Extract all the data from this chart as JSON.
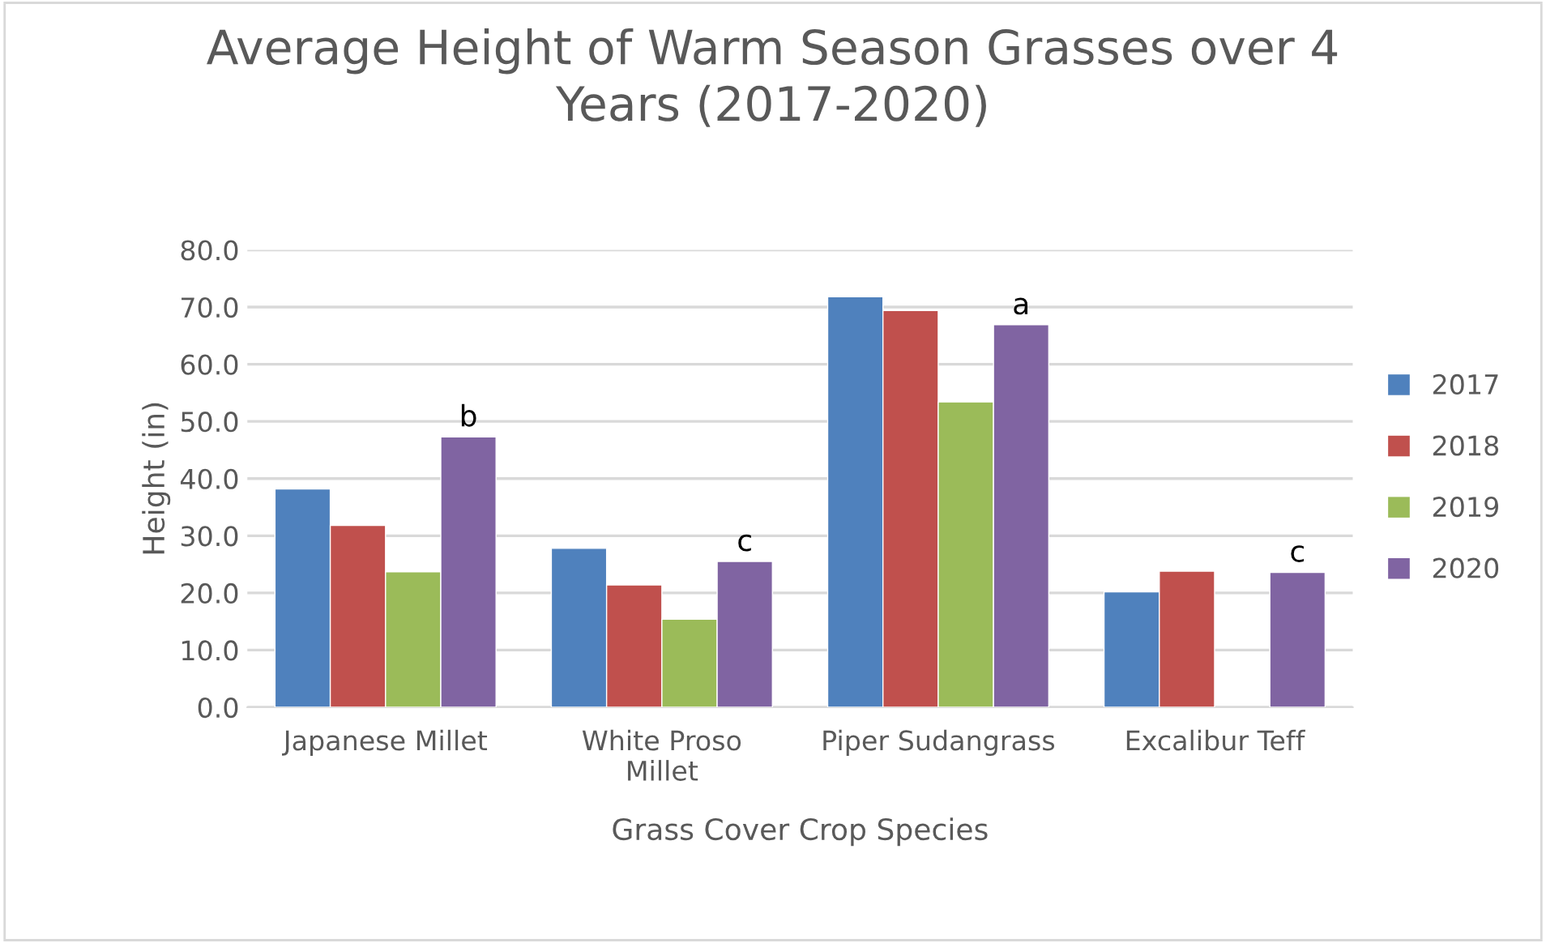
{
  "chart_data": {
    "type": "bar",
    "title": "Average Height of Warm Season Grasses over 4 Years (2017-2020)",
    "xlabel": "Grass Cover Crop Species",
    "ylabel": "Height (in)",
    "categories": [
      "Japanese Millet",
      "White Proso Millet",
      "Piper Sudangrass",
      "Excalibur Teff"
    ],
    "series": [
      {
        "name": "2017",
        "color": "#4f81bd",
        "values": [
          38.2,
          27.8,
          71.8,
          20.2
        ]
      },
      {
        "name": "2018",
        "color": "#c0504d",
        "values": [
          31.8,
          21.4,
          69.4,
          23.8
        ]
      },
      {
        "name": "2019",
        "color": "#9bbb59",
        "values": [
          23.7,
          15.4,
          53.4,
          null
        ]
      },
      {
        "name": "2020",
        "color": "#8064a2",
        "values": [
          47.3,
          25.5,
          66.9,
          23.6
        ]
      }
    ],
    "ylim": [
      0,
      80
    ],
    "yticks": [
      {
        "value": 0,
        "label": "0.0"
      },
      {
        "value": 10,
        "label": "10.0"
      },
      {
        "value": 20,
        "label": "20.0"
      },
      {
        "value": 30,
        "label": "30.0"
      },
      {
        "value": 40,
        "label": "40.0"
      },
      {
        "value": 50,
        "label": "50.0"
      },
      {
        "value": 60,
        "label": "60.0"
      },
      {
        "value": 70,
        "label": "70.0"
      },
      {
        "value": 80,
        "label": "80.0"
      }
    ],
    "grid": "y",
    "legend": "right",
    "annotations": [
      "b",
      "c",
      "a",
      "c"
    ]
  }
}
